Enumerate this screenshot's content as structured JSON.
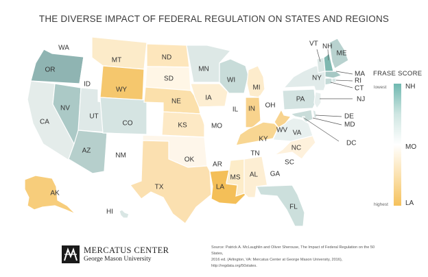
{
  "title": "THE DIVERSE IMPACT OF FEDERAL REGULATION ON STATES AND REGIONS",
  "legend": {
    "title": "FRASE SCORE",
    "lowest_label": "lowest",
    "highest_label": "highest",
    "top_state": "NH",
    "middle_state": "MO",
    "bottom_state": "LA",
    "color_low_impact": "#6fb8b0",
    "color_mid": "#ffffff",
    "color_high_impact": "#f5c15b"
  },
  "states": {
    "WA": {
      "label": "WA",
      "color": "#ffffff"
    },
    "OR": {
      "label": "OR",
      "color": "#8fb4b2"
    },
    "CA": {
      "label": "CA",
      "color": "#e4ecea"
    },
    "ID": {
      "label": "ID",
      "color": "#ffffff"
    },
    "NV": {
      "label": "NV",
      "color": "#abc9c6"
    },
    "UT": {
      "label": "UT",
      "color": "#dfe9e8"
    },
    "AZ": {
      "label": "AZ",
      "color": "#b6cfcc"
    },
    "MT": {
      "label": "MT",
      "color": "#fcebc9"
    },
    "WY": {
      "label": "WY",
      "color": "#f5c76d"
    },
    "CO": {
      "label": "CO",
      "color": "#d5e4e2"
    },
    "NM": {
      "label": "NM",
      "color": "#ffffff"
    },
    "ND": {
      "label": "ND",
      "color": "#fde6bc"
    },
    "SD": {
      "label": "SD",
      "color": "#fff6e6"
    },
    "NE": {
      "label": "NE",
      "color": "#fbe0ab"
    },
    "KS": {
      "label": "KS",
      "color": "#fde9c5"
    },
    "OK": {
      "label": "OK",
      "color": "#fef6ea"
    },
    "TX": {
      "label": "TX",
      "color": "#fbe0b0"
    },
    "MN": {
      "label": "MN",
      "color": "#dde8e6"
    },
    "IA": {
      "label": "IA",
      "color": "#fdeed2"
    },
    "MO": {
      "label": "MO",
      "color": "#ffffff"
    },
    "AR": {
      "label": "AR",
      "color": "#ffffff"
    },
    "LA": {
      "label": "LA",
      "color": "#f4bf58"
    },
    "WI": {
      "label": "WI",
      "color": "#c8dcd9"
    },
    "IL": {
      "label": "IL",
      "color": "#ffffff"
    },
    "MI": {
      "label": "MI",
      "color": "#fdeccc"
    },
    "IN": {
      "label": "IN",
      "color": "#f8d38d"
    },
    "OH": {
      "label": "OH",
      "color": "#ffffff"
    },
    "KY": {
      "label": "KY",
      "color": "#f8d692"
    },
    "TN": {
      "label": "TN",
      "color": "#ffffff"
    },
    "MS": {
      "label": "MS",
      "color": "#fdecc8"
    },
    "AL": {
      "label": "AL",
      "color": "#fdeed3"
    },
    "GA": {
      "label": "GA",
      "color": "#ffffff"
    },
    "FL": {
      "label": "FL",
      "color": "#ccdfdc"
    },
    "SC": {
      "label": "SC",
      "color": "#ffffff"
    },
    "NC": {
      "label": "NC",
      "color": "#fef1dc"
    },
    "VA": {
      "label": "VA",
      "color": "#e8f0ef"
    },
    "WV": {
      "label": "WV",
      "color": "#f8d38e"
    },
    "PA": {
      "label": "PA",
      "color": "#d3e3e1"
    },
    "NY": {
      "label": "NY",
      "color": "#e1ebea"
    },
    "VT": {
      "label": "VT",
      "color": "#dbe7e5"
    },
    "NH": {
      "label": "NH",
      "color": "#7fb8b0"
    },
    "ME": {
      "label": "ME",
      "color": "#b8d2cf"
    },
    "MA": {
      "label": "MA",
      "color": "#a6c8c4"
    },
    "RI": {
      "label": "RI",
      "color": "#d6e5e3"
    },
    "CT": {
      "label": "CT",
      "color": "#c4dad7"
    },
    "NJ": {
      "label": "NJ",
      "color": "#e7efee"
    },
    "DE": {
      "label": "DE",
      "color": "#d9e6e4"
    },
    "MD": {
      "label": "MD",
      "color": "#c9dcd9"
    },
    "DC": {
      "label": "DC",
      "color": "#c9dcd9"
    },
    "AK": {
      "label": "AK",
      "color": "#f7cd7b"
    },
    "HI": {
      "label": "HI",
      "color": "#d9e6e4"
    }
  },
  "logo": {
    "name": "MERCATUS CENTER",
    "subtitle": "George Mason University"
  },
  "source": {
    "line1": "Source: Patrick A. McLaughlin and Oliver Sherouse, The Impact of Federal Regulation on the 50 States,",
    "line2": "2016 ed. (Arlington, VA: Mercatus Center at George Mason University, 2016), http://regdata.org/50states."
  }
}
